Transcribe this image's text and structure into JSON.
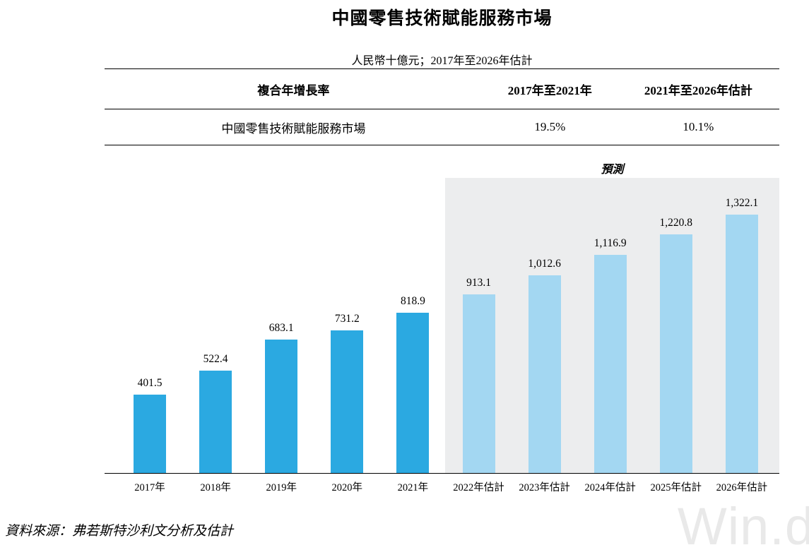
{
  "page": {
    "title": "中國零售技術賦能服務市場",
    "subtitle": "人民幣十億元；2017年至2026年估計",
    "source": "資料來源：弗若斯特沙利文分析及估計",
    "watermark": "Win.d"
  },
  "table": {
    "header": {
      "col1": "複合年增長率",
      "col2": "2017年至2021年",
      "col3": "2021年至2026年估計"
    },
    "row": {
      "col1": "中國零售技術賦能服務市場",
      "col2": "19.5%",
      "col3": "10.1%"
    }
  },
  "chart_data": {
    "type": "bar",
    "title": "中國零售技術賦能服務市場",
    "unit": "人民幣十億元",
    "forecast_label": "預測",
    "categories": [
      "2017年",
      "2018年",
      "2019年",
      "2020年",
      "2021年",
      "2022年估計",
      "2023年估計",
      "2024年估計",
      "2025年估計",
      "2026年估計"
    ],
    "values": [
      401.5,
      522.4,
      683.1,
      731.2,
      818.9,
      913.1,
      1012.6,
      1116.9,
      1220.8,
      1322.1
    ],
    "labels": [
      "401.5",
      "522.4",
      "683.1",
      "731.2",
      "818.9",
      "913.1",
      "1,012.6",
      "1,116.9",
      "1,220.8",
      "1,322.1"
    ],
    "forecast_start_index": 5,
    "ylim": [
      0,
      1400
    ],
    "grid": false,
    "legend": "none",
    "colors": {
      "actual": "#2BA9E1",
      "forecast": "#A3D7F2",
      "forecast_bg": "#ECEDEE"
    }
  }
}
